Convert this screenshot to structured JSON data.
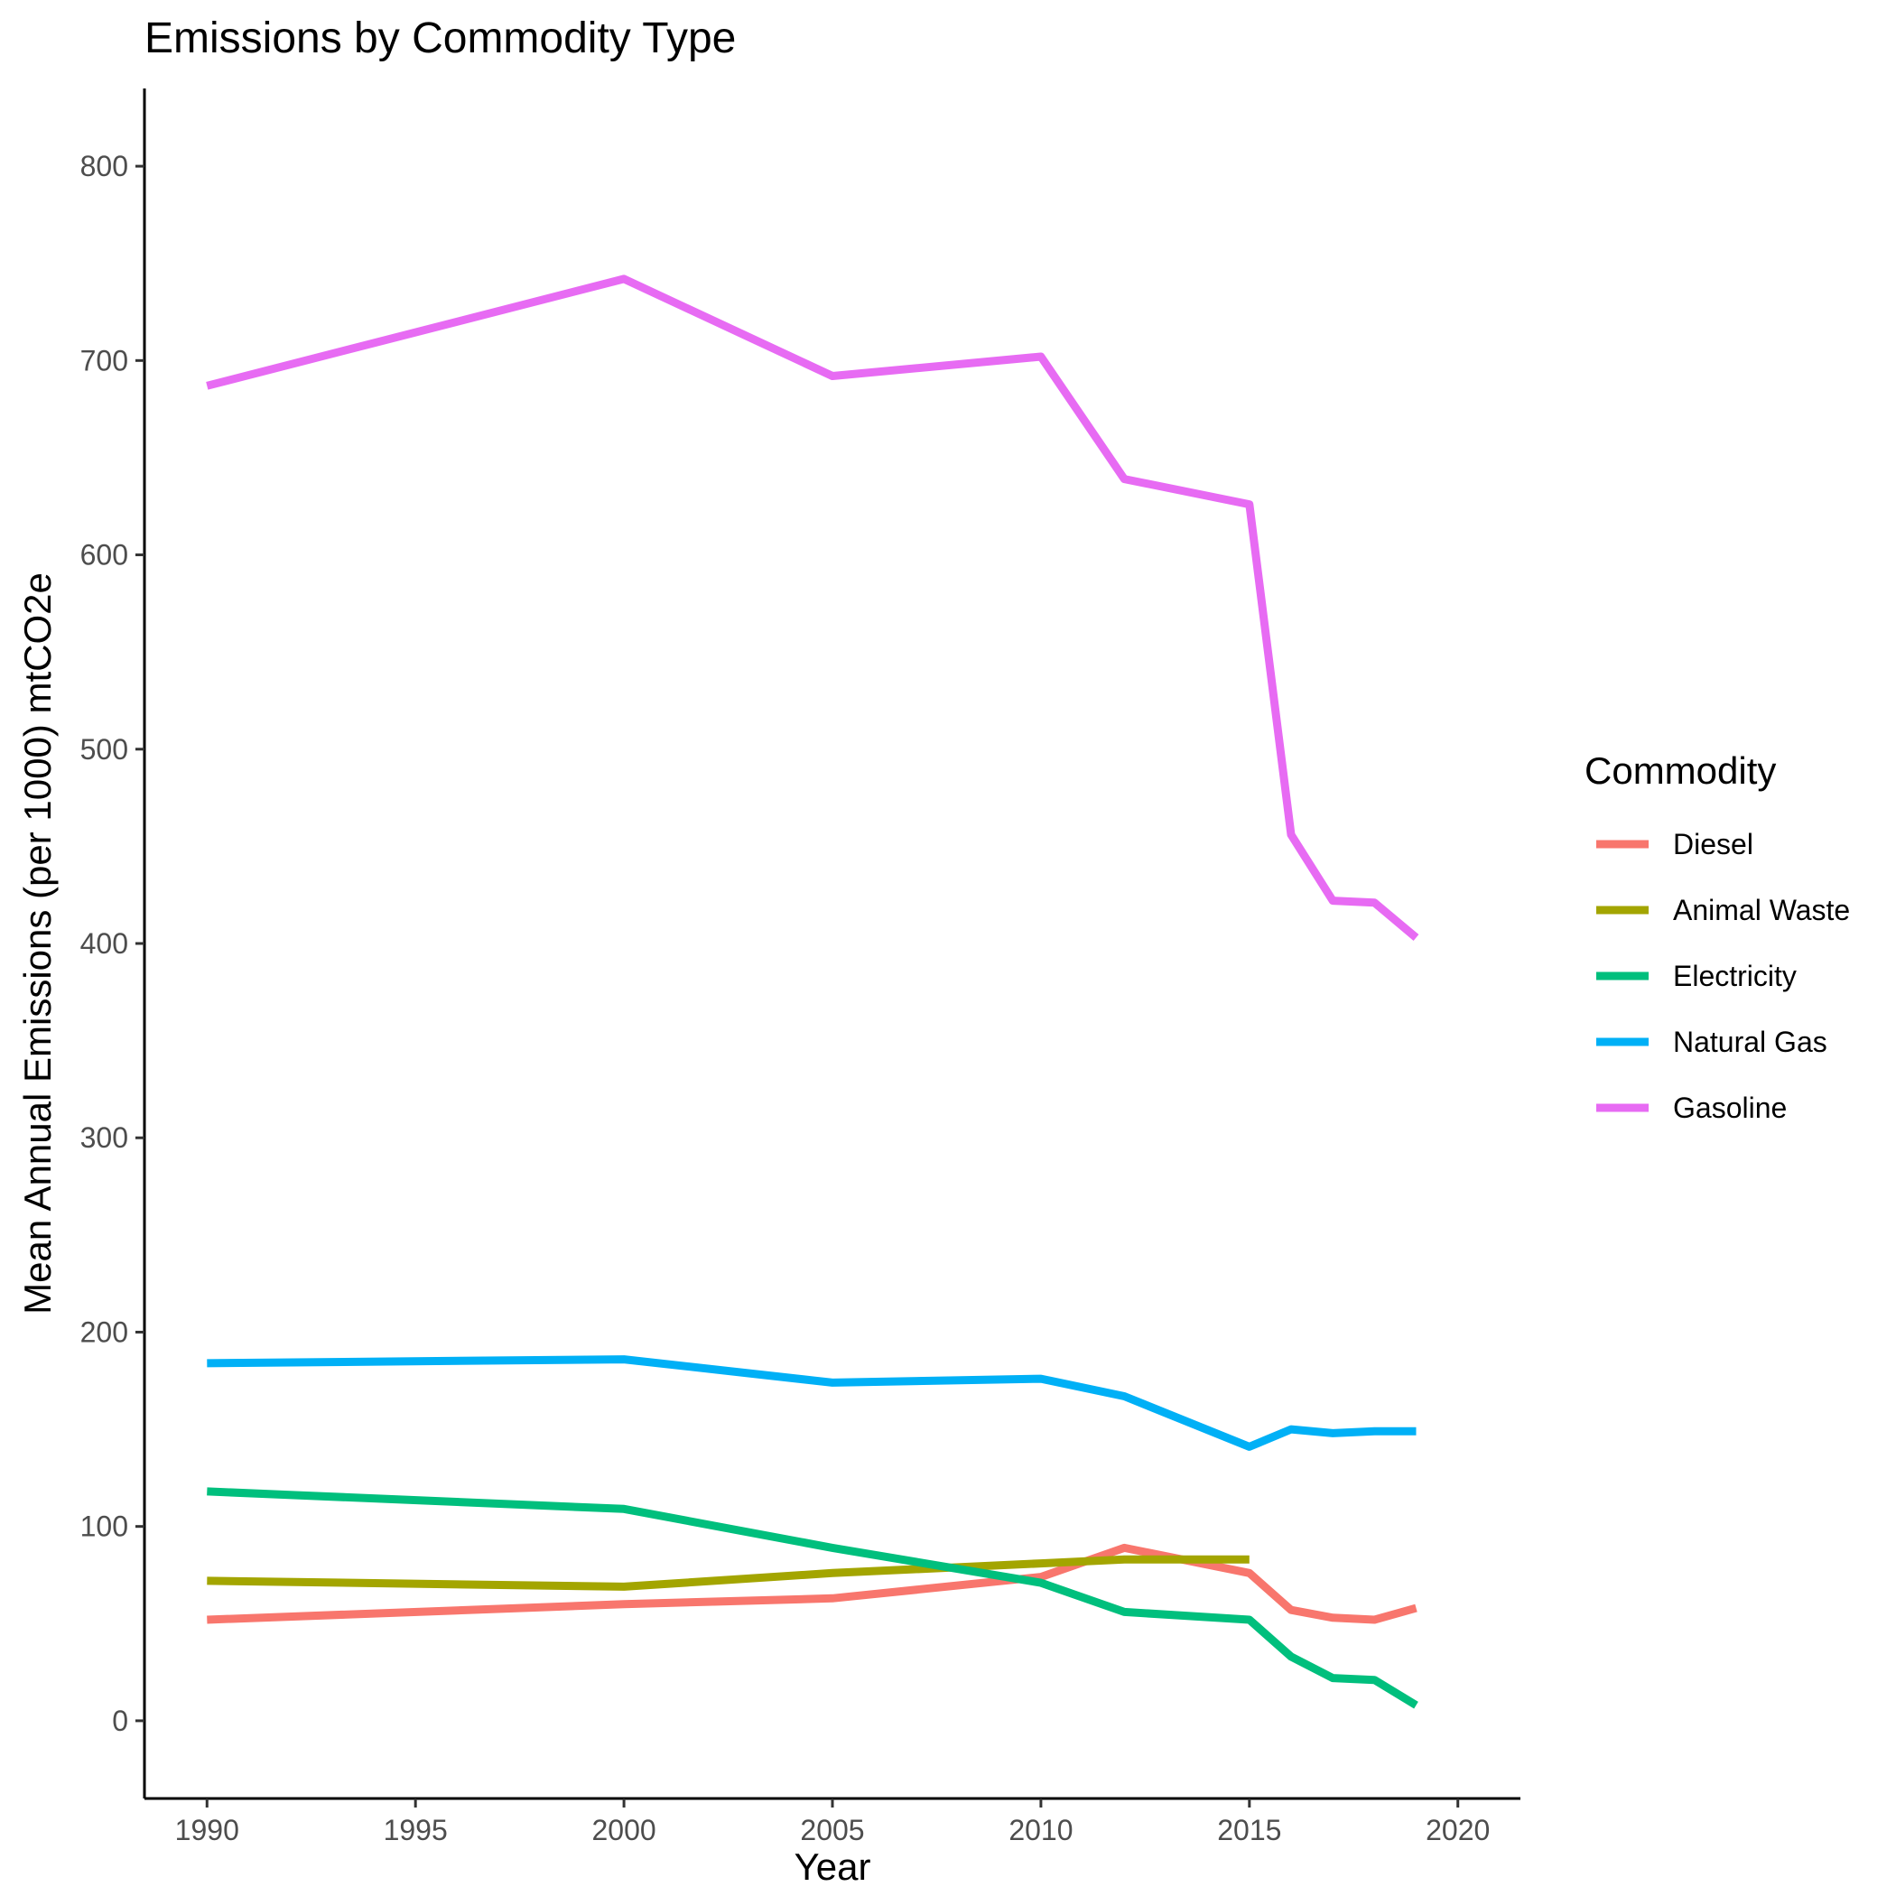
{
  "chart_data": {
    "type": "line",
    "title": "Emissions by Commodity Type",
    "xlabel": "Year",
    "ylabel": "Mean Annual Emissions (per 1000) mtCO2e",
    "xlim": [
      1988.5,
      2021.5
    ],
    "ylim": [
      -40,
      840
    ],
    "x_ticks": [
      1990,
      1995,
      2000,
      2005,
      2010,
      2015,
      2020
    ],
    "y_ticks": [
      0,
      100,
      200,
      300,
      400,
      500,
      600,
      700,
      800
    ],
    "grid": false,
    "legend": {
      "title": "Commodity",
      "position": "right"
    },
    "series": [
      {
        "name": "Diesel",
        "color": "#F8766D",
        "x": [
          1990,
          2000,
          2005,
          2010,
          2012,
          2015,
          2016,
          2017,
          2018,
          2019
        ],
        "y": [
          52,
          60,
          63,
          74,
          89,
          76,
          57,
          53,
          52,
          58
        ]
      },
      {
        "name": "Animal Waste",
        "color": "#A3A500",
        "x": [
          1990,
          2000,
          2005,
          2010,
          2012,
          2015
        ],
        "y": [
          72,
          69,
          76,
          81,
          83,
          83
        ]
      },
      {
        "name": "Electricity",
        "color": "#00BF7D",
        "x": [
          1990,
          2000,
          2005,
          2010,
          2012,
          2015,
          2016,
          2017,
          2018,
          2019
        ],
        "y": [
          118,
          109,
          89,
          71,
          56,
          52,
          33,
          22,
          21,
          8
        ]
      },
      {
        "name": "Natural Gas",
        "color": "#00B0F6",
        "x": [
          1990,
          2000,
          2005,
          2010,
          2012,
          2015,
          2016,
          2017,
          2018,
          2019
        ],
        "y": [
          184,
          186,
          174,
          176,
          167,
          141,
          150,
          148,
          149,
          149
        ]
      },
      {
        "name": "Gasoline",
        "color": "#E76BF3",
        "x": [
          1990,
          2000,
          2005,
          2010,
          2012,
          2015,
          2016,
          2017,
          2018,
          2019
        ],
        "y": [
          687,
          742,
          692,
          702,
          639,
          626,
          456,
          422,
          421,
          403
        ]
      }
    ]
  }
}
